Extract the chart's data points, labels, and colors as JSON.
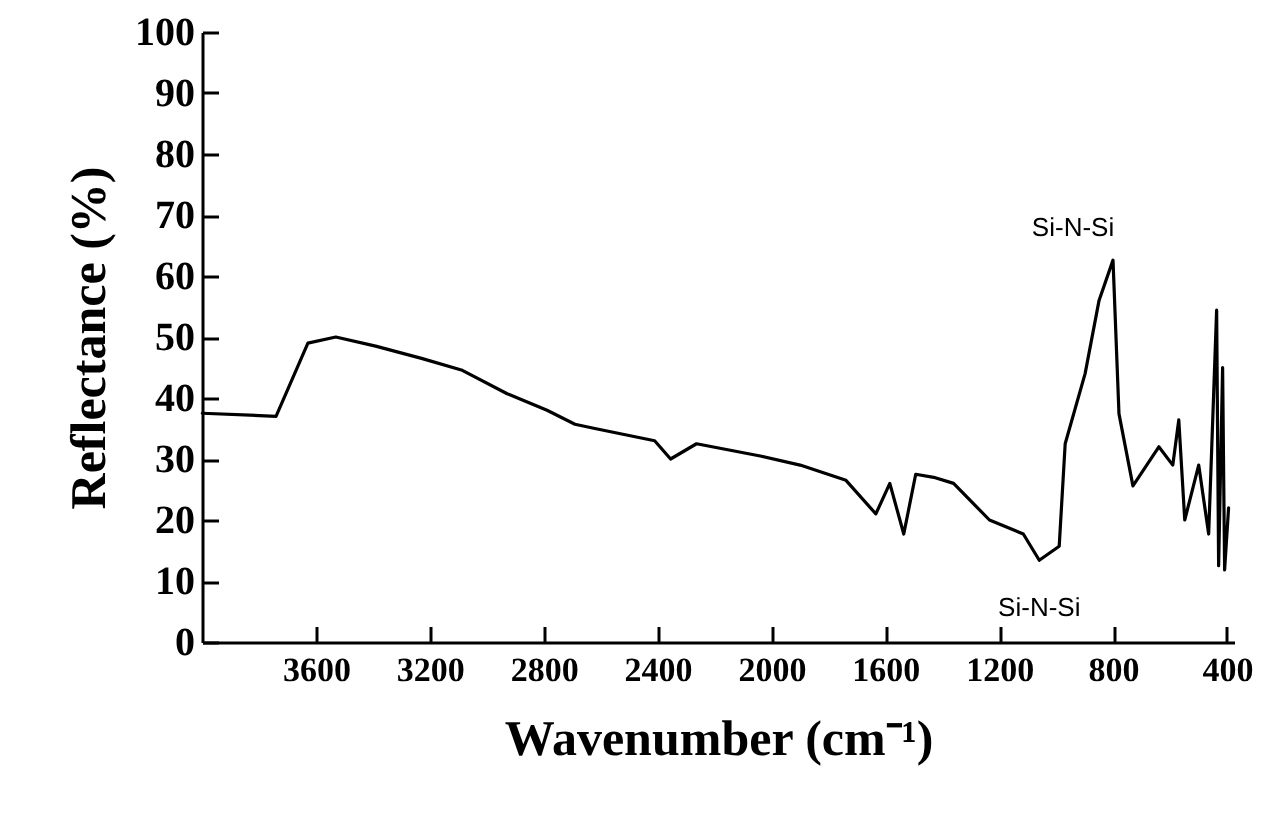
{
  "chart_data": {
    "type": "line",
    "xlabel": "Wavenumber (cm⁻¹)",
    "ylabel": "Reflectance (%)",
    "x": [
      3999,
      3740,
      3628,
      3530,
      3390,
      3229,
      3089,
      2928,
      2788,
      2690,
      2620,
      2410,
      2354,
      2263,
      2039,
      1899,
      1738,
      1633,
      1584,
      1535,
      1493,
      1430,
      1360,
      1234,
      1115,
      1059,
      989,
      968,
      898,
      849,
      800,
      779,
      730,
      639,
      590,
      569,
      548,
      499,
      464,
      436,
      429,
      415,
      408,
      394
    ],
    "series": [
      {
        "color": "#000000",
        "values": [
          37.5,
          37,
          49,
          50,
          48.5,
          46.5,
          44.6,
          40.7,
          38,
          35.7,
          35,
          33,
          30,
          32.5,
          30.5,
          29,
          26.5,
          21,
          26,
          17.7,
          27.5,
          27,
          26,
          20,
          17.7,
          13.4,
          15.7,
          32.5,
          44,
          56,
          62.6,
          37.4,
          25.6,
          32,
          29,
          36.4,
          20,
          29,
          17.7,
          54.4,
          12.5,
          45,
          11.8,
          22
        ]
      }
    ],
    "xlim": [
      4000,
      375
    ],
    "xticks": [
      3600,
      3200,
      2800,
      2400,
      2000,
      1600,
      1200,
      800,
      400
    ],
    "ylim": [
      0,
      100
    ],
    "yticks": [
      0,
      10,
      20,
      30,
      40,
      50,
      60,
      70,
      80,
      90,
      100
    ],
    "annotations": [
      {
        "text": "Si-N-Si",
        "x": 800,
        "y": 62.6
      },
      {
        "text": "Si-N-Si",
        "x": 1059,
        "y": 13.4
      }
    ],
    "grid": false,
    "marker": "none",
    "line_style": "solid"
  }
}
